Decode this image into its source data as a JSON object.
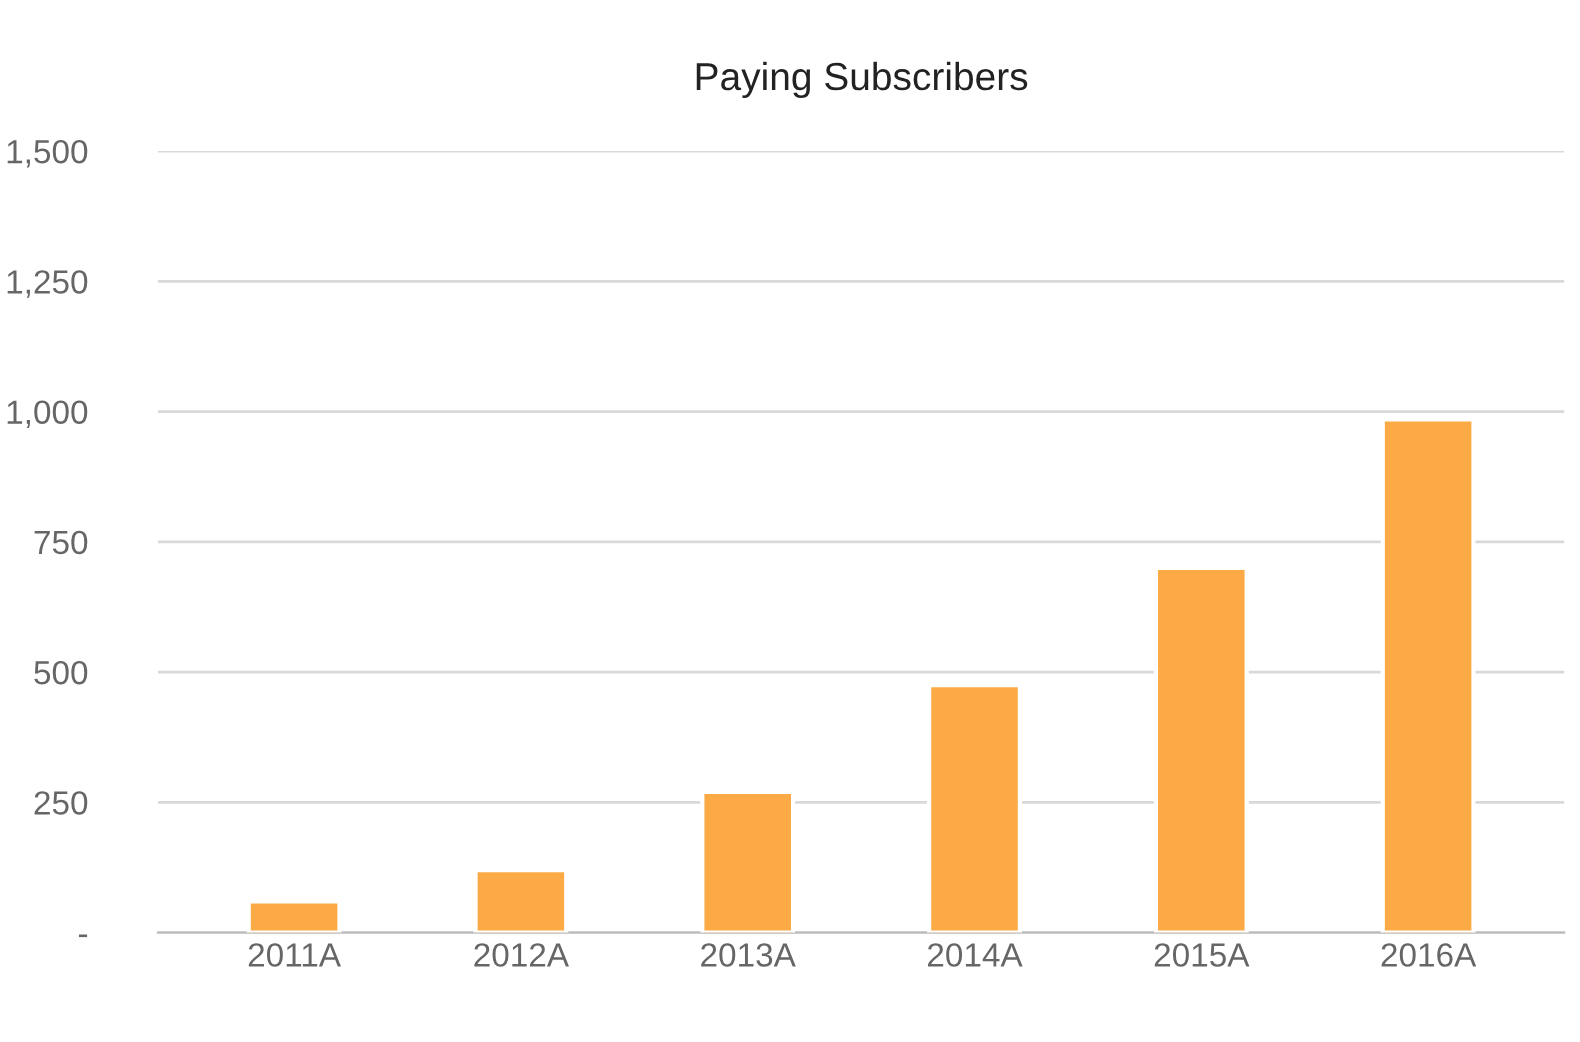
{
  "chart_data": {
    "type": "bar",
    "title": "Paying Subscribers",
    "categories": [
      "2011A",
      "2012A",
      "2013A",
      "2014A",
      "2015A",
      "2016A"
    ],
    "values": [
      60,
      120,
      270,
      475,
      700,
      985
    ],
    "color": "#fbaa45",
    "ylim": [
      0,
      1500
    ],
    "yticks": [
      {
        "value": 0,
        "label": "-"
      },
      {
        "value": 250,
        "label": "250"
      },
      {
        "value": 500,
        "label": "500"
      },
      {
        "value": 750,
        "label": "750"
      },
      {
        "value": 1000,
        "label": "1,000"
      },
      {
        "value": 1250,
        "label": "1,250"
      },
      {
        "value": 1500,
        "label": "1,500"
      }
    ],
    "grid": "y",
    "legend": false
  }
}
